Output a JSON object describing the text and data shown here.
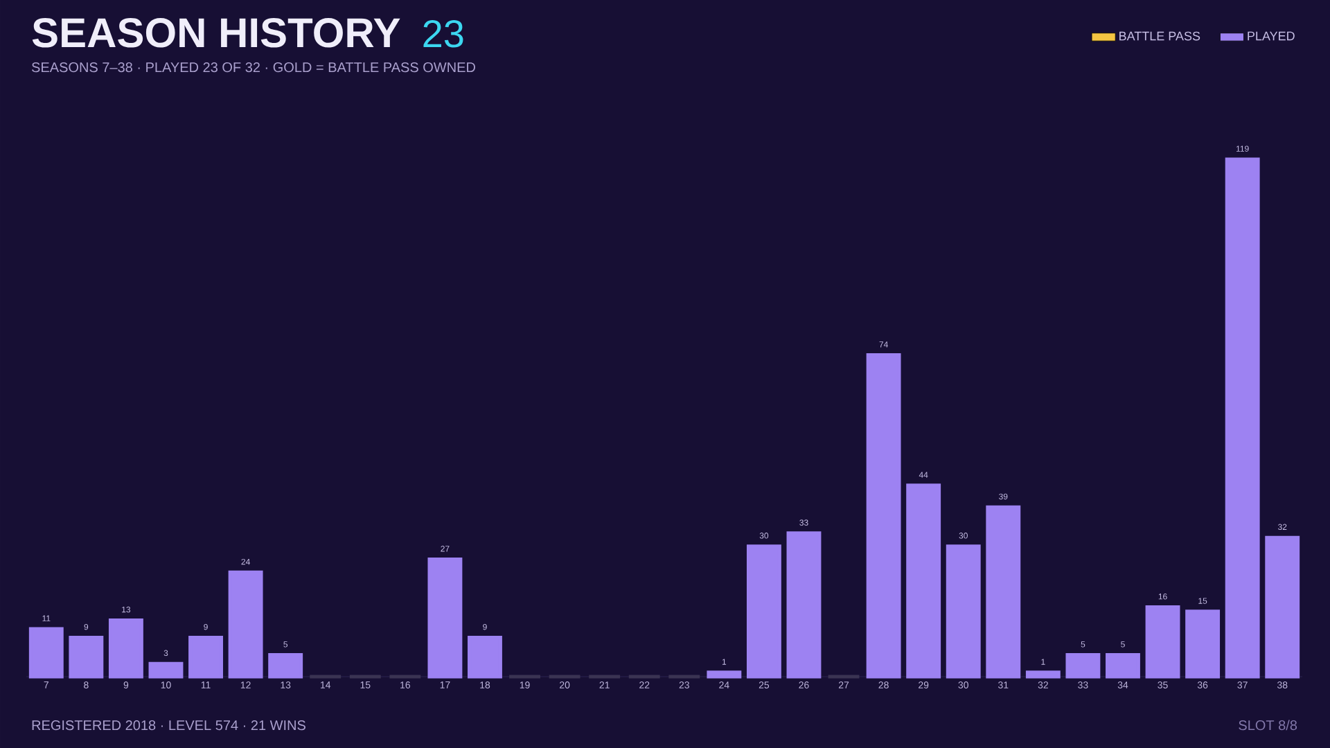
{
  "chart_data": {
    "type": "bar",
    "title": "SEASON HISTORY",
    "subtitle": "SEASONS 7–38  ·  PLAYED 23 OF 32  ·  GOLD = BATTLE PASS OWNED",
    "annotations": [
      "23",
      "REGISTERED 2018  ·  LEVEL 574  ·  21 WINS",
      "SLOT 8/8"
    ],
    "categories": [
      "7",
      "8",
      "9",
      "10",
      "11",
      "12",
      "13",
      "14",
      "15",
      "16",
      "17",
      "18",
      "19",
      "20",
      "21",
      "22",
      "23",
      "24",
      "25",
      "26",
      "27",
      "28",
      "29",
      "30",
      "31",
      "32",
      "33",
      "34",
      "35",
      "36",
      "37",
      "38"
    ],
    "series": [
      {
        "name": "BATTLE PASS",
        "color": "#f5c542",
        "values": [
          null,
          null,
          null,
          null,
          null,
          null,
          null,
          null,
          null,
          null,
          null,
          null,
          null,
          null,
          null,
          null,
          null,
          null,
          null,
          null,
          null,
          null,
          null,
          null,
          null,
          null,
          null,
          null,
          null,
          null,
          null,
          null
        ]
      },
      {
        "name": "PLAYED",
        "color": "#9d82f2",
        "values": [
          11,
          9,
          13,
          3,
          9,
          24,
          5,
          0,
          0,
          0,
          27,
          9,
          0,
          0,
          0,
          0,
          0,
          1,
          30,
          33,
          0,
          74,
          44,
          30,
          39,
          1,
          5,
          5,
          16,
          15,
          119,
          32
        ],
        "colors": [
          "#9d82f2",
          "#9d82f2",
          "#9d82f2",
          "#9d82f2",
          "#9d82f2",
          "#9d82f2",
          "#9d82f2",
          "#3a3352",
          "#3a3352",
          "#3a3352",
          "#9d82f2",
          "#9d82f2",
          "#3a3352",
          "#3a3352",
          "#3a3352",
          "#3a3352",
          "#3a3352",
          "#9d82f2",
          "#9d82f2",
          "#9d82f2",
          "#3a3352",
          "#9d82f2",
          "#9d82f2",
          "#9d82f2",
          "#9d82f2",
          "#9d82f2",
          "#9d82f2",
          "#9d82f2",
          "#9d82f2",
          "#9d82f2",
          "#9d82f2",
          "#9d82f2"
        ],
        "value_labels": [
          "11",
          "9",
          "13",
          "3",
          "9",
          "24",
          "5",
          null,
          null,
          null,
          "27",
          "9",
          null,
          null,
          null,
          null,
          null,
          "1",
          "30",
          "33",
          null,
          "74",
          "44",
          "30",
          "39",
          "1",
          "5",
          "5",
          "16",
          "15",
          "119",
          "32"
        ]
      }
    ],
    "legend": "top right"
  }
}
